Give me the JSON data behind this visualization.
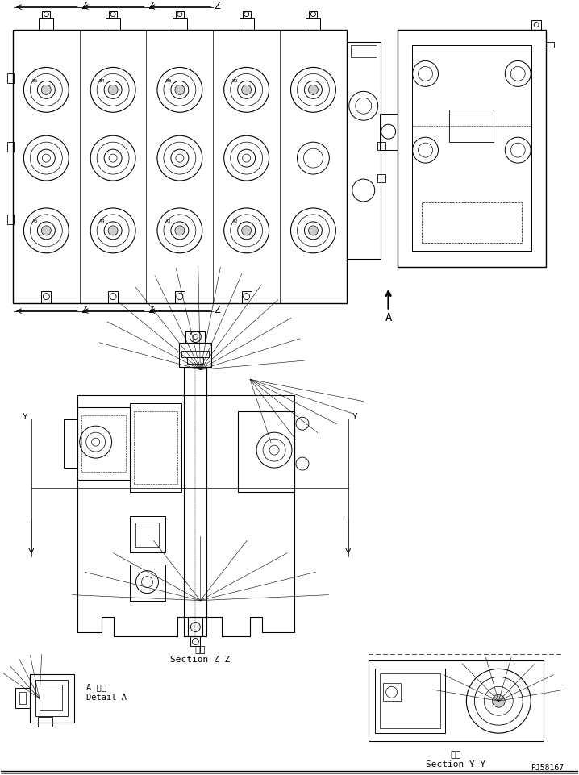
{
  "background_color": "#ffffff",
  "line_color": "#000000",
  "fig_width": 7.18,
  "fig_height": 9.62,
  "dpi": 100,
  "texts": {
    "section_zz_jp": "断面",
    "section_zz_en": "Section Z-Z",
    "section_yy_jp": "断面",
    "section_yy_en": "Section Y-Y",
    "detail_a_jp": "A 詳細",
    "detail_a_en": "Detail A",
    "part_number": "PJ58167",
    "label_a": "A",
    "label_y_left": "Y",
    "label_y_right": "Y",
    "label_z": "Z"
  }
}
